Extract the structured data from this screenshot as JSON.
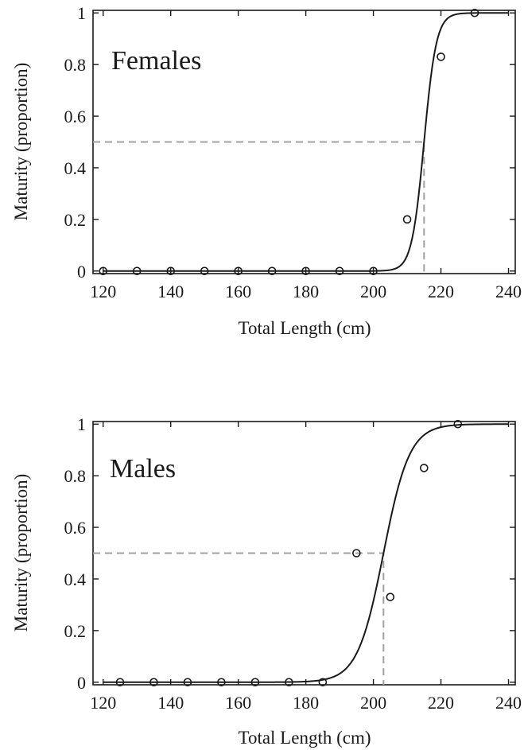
{
  "chart_data": [
    {
      "type": "scatter",
      "panel_label": "Females",
      "xlabel": "Total Length (cm)",
      "ylabel": "Maturity (proportion)",
      "xlim": [
        117,
        242
      ],
      "ylim": [
        -0.01,
        1.01
      ],
      "x_ticks": [
        120,
        140,
        160,
        180,
        200,
        220,
        240
      ],
      "y_ticks": [
        0,
        0.2,
        0.4,
        0.6,
        0.8,
        1
      ],
      "y_tick_labels": [
        "0",
        "0.2",
        "0.4",
        "0.6",
        "0.8",
        "1"
      ],
      "observed": {
        "x": [
          120,
          130,
          140,
          150,
          160,
          170,
          180,
          190,
          200,
          210,
          220,
          230
        ],
        "y": [
          0,
          0,
          0,
          0,
          0,
          0,
          0,
          0,
          0,
          0.2,
          0.83,
          1
        ]
      },
      "fitted_curve": {
        "l50": 215,
        "slope": 0.55,
        "x_range": [
          120,
          240
        ]
      },
      "l50_reference": {
        "x": 215,
        "y": 0.5
      },
      "colors": {
        "curve": "#1a1a1a",
        "reference": "#a0a0a0",
        "markers": "#1a1a1a"
      }
    },
    {
      "type": "scatter",
      "panel_label": "Males",
      "xlabel": "Total Length (cm)",
      "ylabel": "Maturity (proportion)",
      "xlim": [
        117,
        242
      ],
      "ylim": [
        -0.01,
        1.01
      ],
      "x_ticks": [
        120,
        140,
        160,
        180,
        200,
        220,
        240
      ],
      "y_ticks": [
        0,
        0.2,
        0.4,
        0.6,
        0.8,
        1
      ],
      "y_tick_labels": [
        "0",
        "0.2",
        "0.4",
        "0.6",
        "0.8",
        "1"
      ],
      "observed": {
        "x": [
          125,
          135,
          145,
          155,
          165,
          175,
          185,
          195,
          205,
          215,
          225
        ],
        "y": [
          0,
          0,
          0,
          0,
          0,
          0,
          0,
          0.5,
          0.33,
          0.83,
          1
        ]
      },
      "fitted_curve": {
        "l50": 203,
        "slope": 0.26,
        "x_range": [
          120,
          240
        ]
      },
      "l50_reference": {
        "x": 203,
        "y": 0.5
      },
      "colors": {
        "curve": "#1a1a1a",
        "reference": "#a0a0a0",
        "markers": "#1a1a1a"
      }
    }
  ]
}
